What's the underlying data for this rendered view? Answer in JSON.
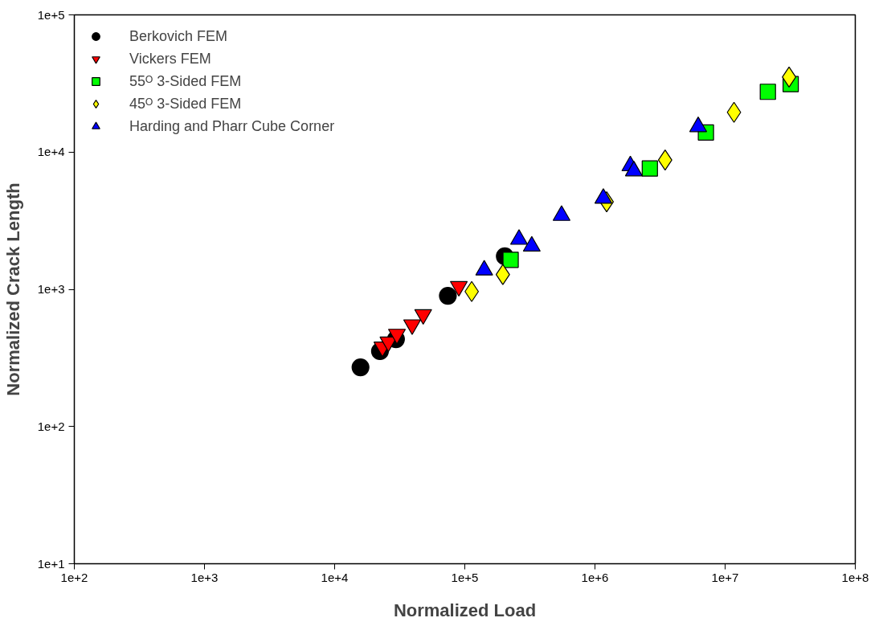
{
  "chart_data": {
    "type": "scatter",
    "xlabel": "Normalized Load",
    "ylabel": "Normalized Crack Length",
    "log": "xy",
    "grid": false,
    "legend": "top left",
    "xlim": [
      100,
      100000000
    ],
    "ylim": [
      10,
      100000
    ],
    "xticks": [
      {
        "value": 100,
        "label": "1e+2"
      },
      {
        "value": 1000,
        "label": "1e+3"
      },
      {
        "value": 10000,
        "label": "1e+4"
      },
      {
        "value": 100000,
        "label": "1e+5"
      },
      {
        "value": 1000000,
        "label": "1e+6"
      },
      {
        "value": 10000000,
        "label": "1e+7"
      },
      {
        "value": 100000000,
        "label": "1e+8"
      }
    ],
    "yticks": [
      {
        "value": 10,
        "label": "1e+1"
      },
      {
        "value": 100,
        "label": "1e+2"
      },
      {
        "value": 1000,
        "label": "1e+3"
      },
      {
        "value": 10000,
        "label": "1e+4"
      },
      {
        "value": 100000,
        "label": "1e+5"
      }
    ],
    "series": [
      {
        "name": "Berkovich FEM",
        "color": "#000000",
        "marker": "circle",
        "x": [
          15800,
          22300,
          29600,
          74100,
          203000
        ],
        "values": [
          270,
          354,
          433,
          897,
          1740
        ]
      },
      {
        "name": "Vickers FEM",
        "color": "#ff0000",
        "x": [
          23300,
          25900,
          30100,
          39400,
          47900,
          90000
        ],
        "values": [
          380,
          414,
          471,
          552,
          655,
          1050
        ]
      },
      {
        "name": "55ᴼ 3-Sided FEM",
        "color": "#00ff00",
        "marker": "square",
        "x": [
          225000,
          2640000,
          7120000,
          21300000,
          31900000
        ],
        "values": [
          1640,
          7590,
          13900,
          27500,
          31300
        ]
      },
      {
        "name": "45ᴼ 3-Sided FEM",
        "color": "#ffff00",
        "marker": "diamond",
        "x": [
          113000,
          196000,
          1230000,
          3460000,
          11700000,
          31000000
        ],
        "values": [
          964,
          1280,
          4340,
          8760,
          19500,
          35200
        ]
      },
      {
        "name": "Harding and Pharr Cube Corner",
        "color": "#0000ff",
        "marker": "triangle",
        "x": [
          141000,
          261000,
          327000,
          554000,
          1160000,
          1870000,
          1990000,
          6210000
        ],
        "values": [
          1380,
          2310,
          2060,
          3450,
          4600,
          7930,
          7280,
          15300
        ]
      }
    ]
  }
}
